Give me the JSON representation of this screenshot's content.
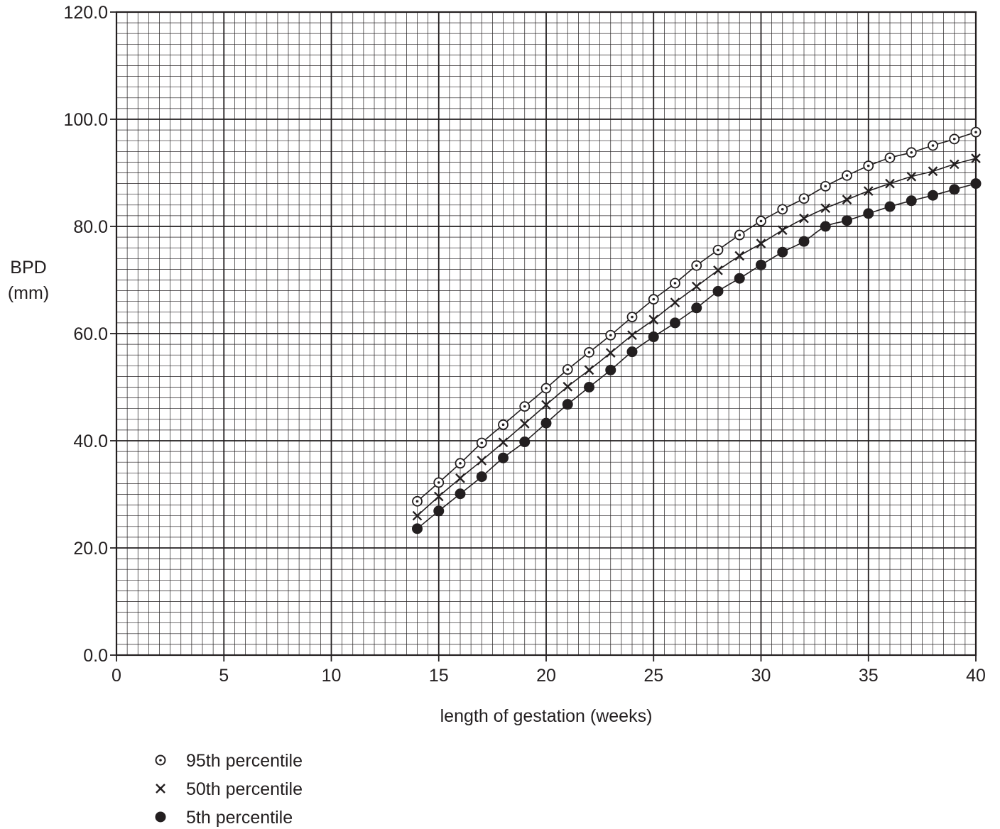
{
  "chart_data": {
    "type": "scatter",
    "title": "",
    "xlabel": "length of gestation (weeks)",
    "ylabel_line1": "BPD",
    "ylabel_line2": "(mm)",
    "xlim": [
      0,
      40
    ],
    "ylim": [
      0,
      120
    ],
    "xticks": [
      "0",
      "5",
      "10",
      "15",
      "20",
      "25",
      "30",
      "35",
      "40"
    ],
    "yticks": [
      "0.0",
      "20.0",
      "40.0",
      "60.0",
      "80.0",
      "100.0",
      "120.0"
    ],
    "grid": true,
    "legend_position": "bottom-left",
    "x": [
      14,
      15,
      16,
      17,
      18,
      19,
      20,
      21,
      22,
      23,
      24,
      25,
      26,
      27,
      28,
      29,
      30,
      31,
      32,
      33,
      34,
      35,
      36,
      37,
      38,
      39,
      40
    ],
    "series": [
      {
        "name": "95th percentile",
        "marker": "dotted-circle",
        "values": [
          28.7,
          32.2,
          35.8,
          39.6,
          43.0,
          46.4,
          49.8,
          53.3,
          56.5,
          59.7,
          63.1,
          66.4,
          69.4,
          72.7,
          75.6,
          78.4,
          81.0,
          83.2,
          85.2,
          87.5,
          89.5,
          91.3,
          92.8,
          93.8,
          95.1,
          96.3,
          97.6
        ]
      },
      {
        "name": "50th percentile",
        "marker": "cross",
        "values": [
          26.0,
          29.6,
          33.0,
          36.3,
          39.7,
          43.2,
          46.7,
          50.1,
          53.2,
          56.4,
          59.7,
          62.6,
          65.8,
          68.8,
          71.8,
          74.5,
          76.8,
          79.3,
          81.5,
          83.4,
          85.0,
          86.6,
          88.0,
          89.3,
          90.3,
          91.6,
          92.7
        ]
      },
      {
        "name": "5th percentile",
        "marker": "filled-circle",
        "values": [
          23.6,
          26.9,
          30.1,
          33.3,
          36.8,
          39.8,
          43.3,
          46.8,
          50.0,
          53.2,
          56.6,
          59.4,
          62.0,
          64.8,
          67.9,
          70.3,
          72.8,
          75.2,
          77.2,
          80.0,
          81.1,
          82.4,
          83.7,
          84.8,
          85.8,
          86.9,
          88.0
        ]
      }
    ]
  }
}
